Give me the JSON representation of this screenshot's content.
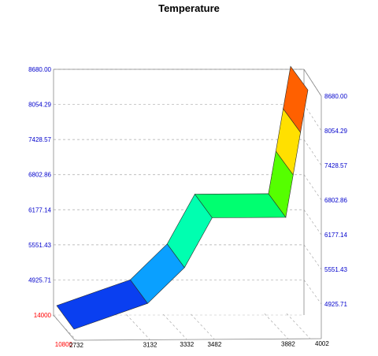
{
  "chart_data": {
    "type": "area",
    "title": "Temperature",
    "view": "3d ribbon surface",
    "grid": true,
    "legend": "none",
    "colormap": "rainbow (blue low to red high)",
    "ylim": [
      4000,
      8680
    ],
    "y_ticks_left": [
      "8680.00",
      "8054.29",
      "7428.57",
      "6802.86",
      "6177.14",
      "5551.43",
      "4925.71"
    ],
    "y_ticks_right": [
      "8680.00",
      "8054.29",
      "7428.57",
      "6802.86",
      "6177.14",
      "5551.43",
      "4925.71"
    ],
    "z_tick_back": "14000",
    "z_tick_front": "10800",
    "x_ticks": [
      "2732",
      "3132",
      "3332",
      "3482",
      "3882",
      "4002"
    ],
    "x": [
      2732,
      3132,
      3332,
      3482,
      3882,
      4002
    ],
    "series": [
      {
        "values": [
          4000,
          4500,
          5200,
          6177,
          6177,
          8680
        ]
      }
    ],
    "colors": {
      "segments": [
        "#0a3ff0",
        "#0aa0ff",
        "#00ffb0",
        "#00ff70",
        "#55ff00",
        "#ffe000",
        "#ff6000"
      ],
      "left_tick_label": "#0000cc",
      "right_tick_label": "#0000cc",
      "depth_tick_label": "#ff0000",
      "x_tick_label": "#000000"
    }
  }
}
